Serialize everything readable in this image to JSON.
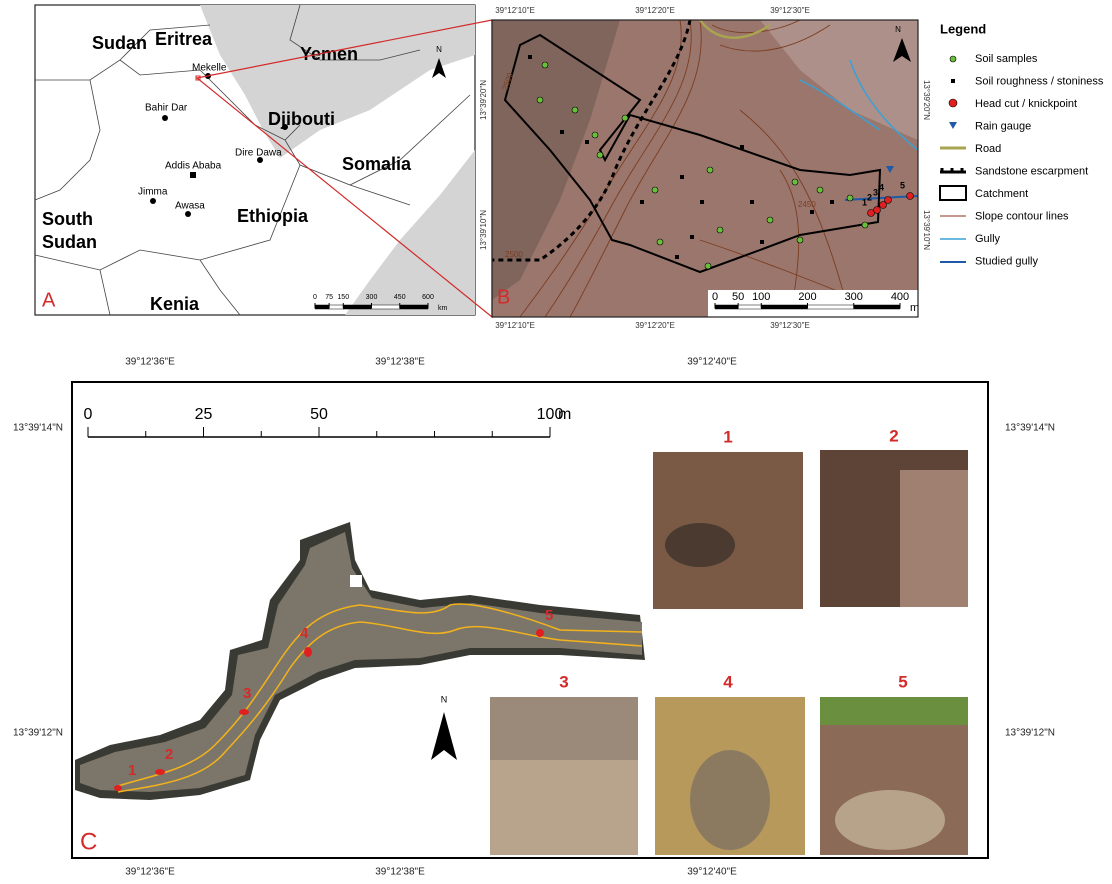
{
  "panel_a": {
    "label": "A",
    "north": "N",
    "places": [
      "Sudan",
      "Eritrea",
      "Yemen",
      "Mekelle",
      "Bahir Dar",
      "Djibouti",
      "Dire Dawa",
      "Addis Ababa",
      "Somalia",
      "Jimma",
      "Awasa",
      "Ethiopia",
      [
        "South",
        "Sudan"
      ],
      "Kenia"
    ],
    "scale": {
      "ticks": [
        0,
        75,
        150,
        300,
        450,
        600
      ],
      "unit": "km"
    }
  },
  "panel_b": {
    "label": "B",
    "north": "N",
    "top_coords": [
      "39°12'10\"E",
      "39°12'20\"E",
      "39°12'30\"E"
    ],
    "bottom_coords": [
      "39°12'10\"E",
      "39°12'20\"E",
      "39°12'30\"E"
    ],
    "left_coords": [
      "13°39'20\"N",
      "13°39'10\"N"
    ],
    "right_coords": [
      "13°39'20\"N",
      "13°39'10\"N"
    ],
    "contours": [
      "2500",
      "2500",
      "2450"
    ],
    "knickpoints": [
      "1",
      "2",
      "3",
      "4",
      "5"
    ],
    "scale": {
      "ticks": [
        0,
        50,
        100,
        200,
        300,
        400
      ],
      "unit": "m"
    }
  },
  "legend": {
    "title": "Legend",
    "items": [
      "Soil samples",
      "Soil roughness / stoniness",
      "Head cut / knickpoint",
      "Rain gauge",
      "Road",
      "Sandstone escarpment",
      "Catchment",
      "Slope contour lines",
      "Gully",
      "Studied gully"
    ]
  },
  "panel_c": {
    "label": "C",
    "north": "N",
    "top_coords": [
      "39°12'36\"E",
      "39°12'38\"E",
      "39°12'40\"E"
    ],
    "bottom_coords": [
      "39°12'36\"E",
      "39°12'38\"E",
      "39°12'40\"E"
    ],
    "left_coords": [
      "13°39'14\"N",
      "13°39'12\"N"
    ],
    "right_coords": [
      "13°39'14\"N",
      "13°39'12\"N"
    ],
    "scale": {
      "ticks": [
        0,
        25,
        50,
        100
      ],
      "unit": "m"
    },
    "gully_labels": [
      "1",
      "2",
      "3",
      "4",
      "5"
    ],
    "photo_labels": [
      "1",
      "2",
      "3",
      "4",
      "5"
    ]
  }
}
